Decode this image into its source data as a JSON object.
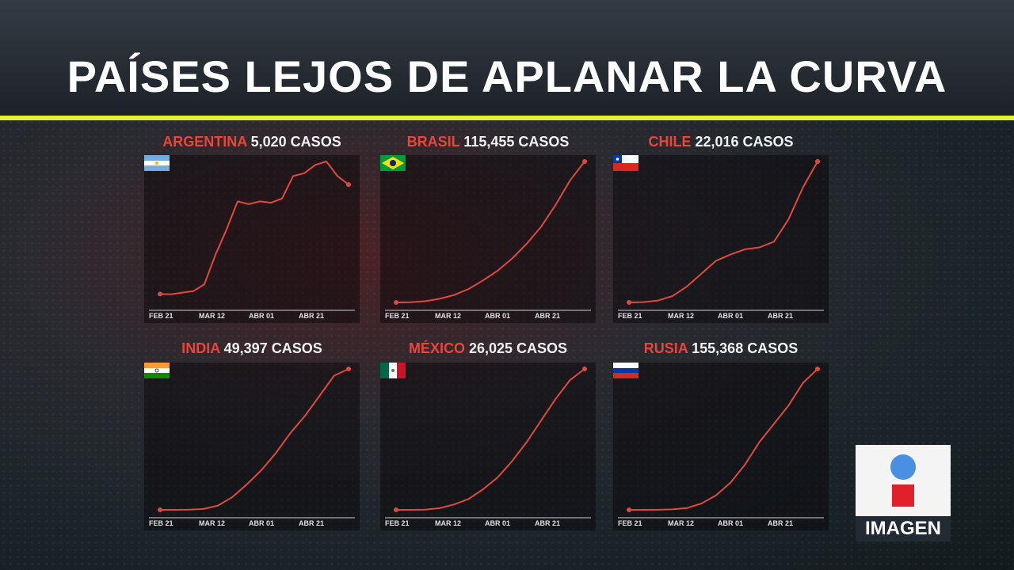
{
  "title": "PAÍSES LEJOS DE APLANAR LA CURVA",
  "logo_text": "IMAGEN",
  "colors": {
    "accent_line": "#e3f03a",
    "country": "#e8463a",
    "curve": "#e04a3c",
    "axis": "#cfcfcf"
  },
  "chart_data": [
    {
      "type": "line",
      "country": "ARGENTINA",
      "cases_label": "5,020 CASOS",
      "flag": "argentina-flag-icon",
      "x_ticks": [
        "FEB 21",
        "MAR 12",
        "ABR 01",
        "ABR 21"
      ],
      "series": [
        {
          "values": [
            300,
            290,
            350,
            400,
            650,
            1700,
            2600,
            3600,
            3500,
            3600,
            3550,
            3700,
            4500,
            4600,
            4900,
            5020,
            4500,
            4200
          ]
        }
      ]
    },
    {
      "type": "line",
      "country": "BRASIL",
      "cases_label": "115,455 CASOS",
      "flag": "brazil-flag-icon",
      "x_ticks": [
        "FEB 21",
        "MAR 12",
        "ABR 01",
        "ABR 21"
      ],
      "series": [
        {
          "values": [
            0,
            200,
            1000,
            3000,
            6000,
            11000,
            18000,
            26000,
            36000,
            48000,
            62000,
            80000,
            100000,
            115455
          ]
        }
      ]
    },
    {
      "type": "line",
      "country": "CHILE",
      "cases_label": "22,016 CASOS",
      "flag": "chile-flag-icon",
      "x_ticks": [
        "FEB 21",
        "MAR 12",
        "ABR 01",
        "ABR 21"
      ],
      "series": [
        {
          "values": [
            0,
            50,
            300,
            1000,
            2500,
            4500,
            6500,
            7500,
            8300,
            8600,
            9500,
            13000,
            18000,
            22016
          ]
        }
      ]
    },
    {
      "type": "line",
      "country": "INDIA",
      "cases_label": "49,397 CASOS",
      "flag": "india-flag-icon",
      "x_ticks": [
        "FEB 21",
        "MAR 12",
        "ABR 01",
        "ABR 21"
      ],
      "series": [
        {
          "values": [
            0,
            10,
            50,
            300,
            1500,
            4500,
            9000,
            14000,
            20000,
            27000,
            33000,
            40000,
            47000,
            49397
          ]
        }
      ]
    },
    {
      "type": "line",
      "country": "MÉXICO",
      "cases_label": "26,025 CASOS",
      "flag": "mexico-flag-icon",
      "x_ticks": [
        "FEB 21",
        "MAR 12",
        "ABR 01",
        "ABR 21"
      ],
      "series": [
        {
          "values": [
            0,
            5,
            50,
            300,
            1000,
            2000,
            3800,
            6000,
            9000,
            12500,
            16500,
            20500,
            24000,
            26025
          ]
        }
      ]
    },
    {
      "type": "line",
      "country": "RUSIA",
      "cases_label": "155,368 CASOS",
      "flag": "russia-flag-icon",
      "x_ticks": [
        "FEB 21",
        "MAR 12",
        "ABR 01",
        "ABR 21"
      ],
      "series": [
        {
          "values": [
            0,
            0,
            100,
            500,
            2000,
            7000,
            16000,
            30000,
            50000,
            75000,
            95000,
            115000,
            140000,
            155368
          ]
        }
      ]
    }
  ]
}
